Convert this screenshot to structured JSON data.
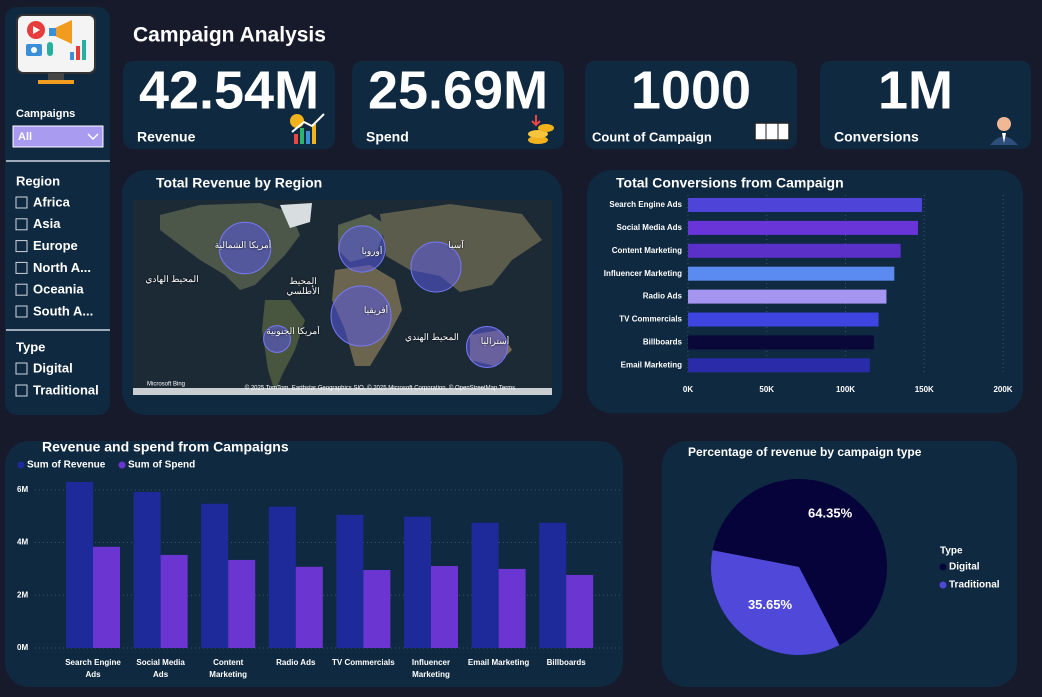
{
  "title": "Campaign Analysis",
  "sidebar": {
    "campaigns_label": "Campaigns",
    "campaigns_value": "All",
    "region_label": "Region",
    "regions": [
      "Africa",
      "Asia",
      "Europe",
      "North A...",
      "Oceania",
      "South A..."
    ],
    "type_label": "Type",
    "types": [
      "Digital",
      "Traditional"
    ]
  },
  "kpis": [
    {
      "value": "42.54M",
      "label": "Revenue"
    },
    {
      "value": "25.69M",
      "label": "Spend"
    },
    {
      "value": "1000",
      "label": "Count of Campaign"
    },
    {
      "value": "1M",
      "label": "Conversions"
    }
  ],
  "chart_data": [
    {
      "type": "bubble-map",
      "title": "Total Revenue by Region",
      "color": "#5a5ae0",
      "values": [
        11500000,
        8000000,
        6800000,
        8500000,
        5400000,
        2300000
      ],
      "labels": [
        "أمريكا الشمالية",
        "أوروبا",
        "آسيا",
        "المحيط الهادي",
        "المحيط الأطلسي",
        "أفريقيا",
        "أمريكا الجنوبية",
        "المحيط الهندي",
        "أستراليا"
      ],
      "logo": "Microsoft Bing",
      "attribution": "© 2025 TomTom, Earthstar Geographics SIO, © 2025 Microsoft Corporation, © OpenStreetMap Terms"
    },
    {
      "type": "hbar",
      "title": "Total Conversions from Campaign",
      "categories": [
        "Search Engine Ads",
        "Social Media Ads",
        "Content Marketing",
        "Influencer Marketing",
        "Radio Ads",
        "TV Commercials",
        "Billboards",
        "Email Marketing"
      ],
      "values": [
        148600,
        146000,
        135000,
        131000,
        126000,
        121000,
        118000,
        115500
      ],
      "colors": [
        "#4f44d8",
        "#6a35d8",
        "#5a30c8",
        "#5b8af0",
        "#a594f0",
        "#3d44e0",
        "#0a0838",
        "#2a2ba8"
      ],
      "xlim": [
        0,
        200000
      ],
      "xticks": [
        {
          "value": 0,
          "label": "0K"
        },
        {
          "value": 50000,
          "label": "50K"
        },
        {
          "value": 100000,
          "label": "100K"
        },
        {
          "value": 150000,
          "label": "150K"
        },
        {
          "value": 200000,
          "label": "200K"
        }
      ],
      "grid": true
    },
    {
      "type": "grouped-bar",
      "title": "Revenue and spend from Campaigns",
      "categories": [
        "Search Engine Ads",
        "Social Media Ads",
        "Content Marketing",
        "Radio Ads",
        "TV Commercials",
        "Influencer Marketing",
        "Email Marketing",
        "Billboards"
      ],
      "series": [
        {
          "name": "Sum of Revenue",
          "color": "#1e2a9a",
          "values": [
            6300000,
            5920000,
            5470000,
            5360000,
            5050000,
            4980000,
            4750000,
            4750000
          ]
        },
        {
          "name": "Sum of Spend",
          "color": "#6a35d0",
          "values": [
            3840000,
            3530000,
            3340000,
            3080000,
            2960000,
            3110000,
            3000000,
            2770000
          ]
        }
      ],
      "ylim": [
        0,
        6600000
      ],
      "yticks": [
        {
          "value": 0,
          "label": "0M"
        },
        {
          "value": 2000000,
          "label": "2M"
        },
        {
          "value": 4000000,
          "label": "4M"
        },
        {
          "value": 6000000,
          "label": "6M"
        }
      ],
      "grid": true
    },
    {
      "type": "pie",
      "title": "Percentage of revenue by campaign type",
      "legend_title": "Type",
      "categories": [
        "Digital",
        "Traditional"
      ],
      "values": [
        64.35,
        35.65
      ],
      "value_labels": [
        "64.35%",
        "35.65%"
      ],
      "colors": [
        "#06033a",
        "#5048d8"
      ]
    }
  ]
}
